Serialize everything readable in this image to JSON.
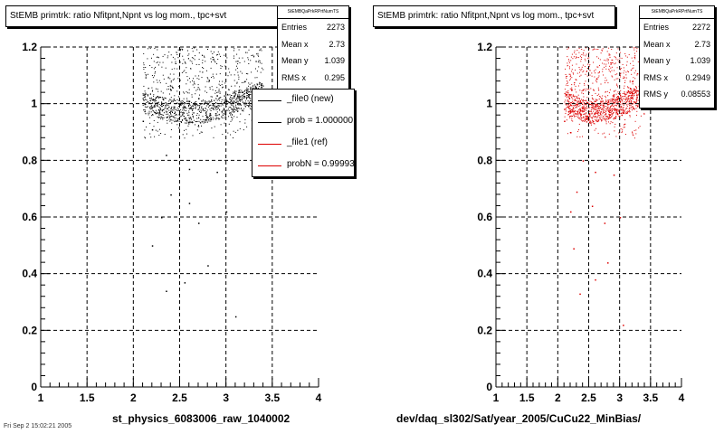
{
  "footer_text": "Fri Sep 2 15:02:21 2005",
  "colors": {
    "ref": "#000000",
    "new": "#dd0000",
    "grid": "#000000"
  },
  "chart_data": [
    {
      "type": "scatter",
      "title": "StEMB primtrk: ratio Nfitpnt,Npnt vs log mom., tpc+svt",
      "xlabel": "st_physics_6083006_raw_1040002",
      "ylabel": "",
      "xlim": [
        1,
        4
      ],
      "ylim": [
        0,
        1.2
      ],
      "xticks": [
        "1",
        "1.5",
        "2",
        "2.5",
        "3",
        "3.5",
        "4"
      ],
      "yticks": [
        "0",
        "0.2",
        "0.4",
        "0.6",
        "0.8",
        "1",
        "1.2"
      ],
      "grid": true,
      "color": "#000000",
      "stats": {
        "header": "StEMBQaPrkRPrtNumTS",
        "rows": [
          {
            "key": "Entries",
            "value": "2273"
          },
          {
            "key": "Mean x",
            "value": "2.73"
          },
          {
            "key": "Mean y",
            "value": "1.039"
          },
          {
            "key": "RMS x",
            "value": "0.295"
          }
        ]
      },
      "legend": [
        {
          "label": "_file0 (new)",
          "color": "#000000"
        },
        {
          "label": "prob = 1.000000",
          "color": "#000000"
        },
        {
          "label": "_file1 (ref)",
          "color": "#dd0000"
        },
        {
          "label": "probN = 0.999933",
          "color": "#dd0000"
        }
      ],
      "points": [
        [
          2.5,
          1.0
        ],
        [
          2.6,
          1.01
        ],
        [
          2.7,
          1.02
        ],
        [
          2.55,
          0.99
        ],
        [
          2.8,
          1.0
        ],
        [
          2.4,
          1.05
        ],
        [
          2.9,
          1.03
        ],
        [
          3.0,
          1.01
        ],
        [
          2.3,
          1.0
        ],
        [
          3.2,
          1.08
        ],
        [
          2.1,
          0.94
        ],
        [
          2.2,
          0.91
        ],
        [
          2.35,
          0.82
        ],
        [
          2.6,
          0.77
        ],
        [
          2.9,
          0.76
        ],
        [
          2.4,
          0.68
        ],
        [
          2.6,
          0.65
        ],
        [
          2.3,
          0.6
        ],
        [
          2.7,
          0.58
        ],
        [
          3.0,
          0.62
        ],
        [
          2.2,
          0.5
        ],
        [
          2.8,
          0.43
        ],
        [
          2.35,
          0.34
        ],
        [
          2.55,
          0.37
        ],
        [
          3.1,
          0.25
        ]
      ]
    },
    {
      "type": "scatter",
      "title": "StEMB primtrk: ratio Nfitpnt,Npnt vs log mom., tpc+svt",
      "xlabel": "dev/daq_sl302/Sat/year_2005/CuCu22_MinBias/",
      "ylabel": "",
      "xlim": [
        1,
        4
      ],
      "ylim": [
        0,
        1.2
      ],
      "xticks": [
        "1",
        "1.5",
        "2",
        "2.5",
        "3",
        "3.5",
        "4"
      ],
      "yticks": [
        "0",
        "0.2",
        "0.4",
        "0.6",
        "0.8",
        "1",
        "1.2"
      ],
      "grid": true,
      "color": "#dd0000",
      "stats": {
        "header": "StEMBQaPrkRPrtNumTS",
        "rows": [
          {
            "key": "Entries",
            "value": "2272"
          },
          {
            "key": "Mean x",
            "value": "2.73"
          },
          {
            "key": "Mean y",
            "value": "1.039"
          },
          {
            "key": "RMS x",
            "value": "0.2949"
          },
          {
            "key": "RMS y",
            "value": "0.08553"
          }
        ]
      },
      "legend": [],
      "points": [
        [
          2.5,
          1.0
        ],
        [
          2.6,
          1.01
        ],
        [
          2.7,
          1.02
        ],
        [
          2.55,
          0.99
        ],
        [
          2.8,
          1.0
        ],
        [
          2.4,
          1.05
        ],
        [
          2.9,
          1.03
        ],
        [
          3.0,
          1.01
        ],
        [
          2.3,
          1.0
        ],
        [
          3.2,
          1.08
        ],
        [
          2.1,
          0.94
        ],
        [
          2.2,
          0.9
        ],
        [
          2.4,
          0.8
        ],
        [
          2.6,
          0.76
        ],
        [
          2.9,
          0.75
        ],
        [
          2.3,
          0.69
        ],
        [
          2.55,
          0.64
        ],
        [
          2.2,
          0.62
        ],
        [
          2.75,
          0.58
        ],
        [
          3.0,
          0.6
        ],
        [
          2.25,
          0.49
        ],
        [
          2.8,
          0.44
        ],
        [
          2.35,
          0.33
        ],
        [
          2.6,
          0.38
        ],
        [
          3.05,
          0.22
        ]
      ]
    }
  ]
}
